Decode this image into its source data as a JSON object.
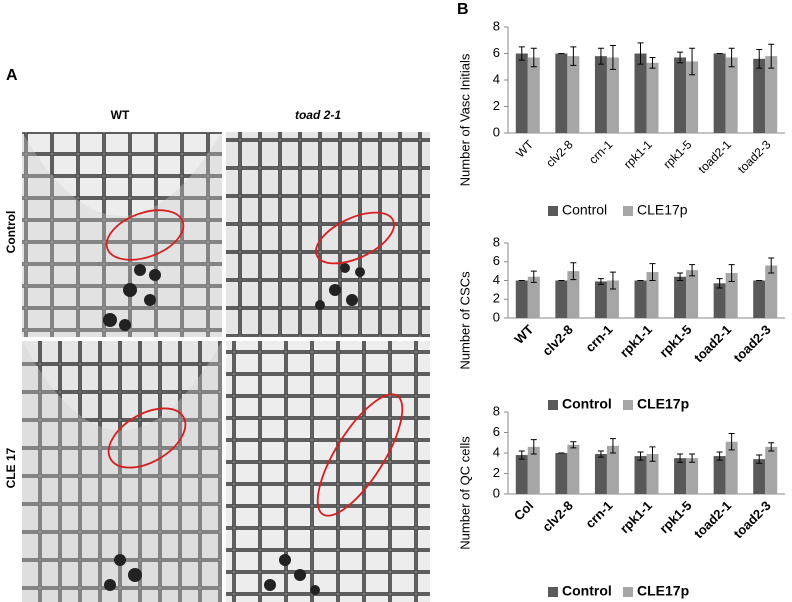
{
  "panel_a": {
    "label": "A",
    "columns": [
      "WT",
      "toad 2-1"
    ],
    "rows": [
      "Control",
      "CLE 17"
    ]
  },
  "panel_b": {
    "label": "B"
  },
  "chart_data": [
    {
      "type": "bar",
      "ylabel": "Number of Vasc Initials",
      "categories": [
        "WT",
        "clv2-8",
        "crn-1",
        "rpk1-1",
        "rpk1-5",
        "toad2-1",
        "toad2-3"
      ],
      "series": [
        {
          "name": "Control",
          "color": "#595959",
          "values": [
            6.0,
            6.0,
            5.8,
            6.0,
            5.7,
            6.0,
            5.6
          ],
          "errors": [
            0.5,
            0,
            0.6,
            0.8,
            0.4,
            0,
            0.7
          ]
        },
        {
          "name": "CLE17p",
          "color": "#a6a6a6",
          "values": [
            5.7,
            5.8,
            5.7,
            5.3,
            5.4,
            5.7,
            5.8
          ],
          "errors": [
            0.7,
            0.7,
            0.9,
            0.4,
            1.0,
            0.7,
            0.9
          ]
        }
      ],
      "ylim": [
        0,
        8
      ],
      "yticks": [
        0,
        2,
        4,
        6,
        8
      ],
      "grid": false,
      "bold_labels": false
    },
    {
      "type": "bar",
      "ylabel": "Number of CSCs",
      "categories": [
        "WT",
        "clv2-8",
        "crn-1",
        "rpk1-1",
        "rpk1-5",
        "toad2-1",
        "toad2-3"
      ],
      "series": [
        {
          "name": "Control",
          "color": "#595959",
          "values": [
            4.0,
            4.0,
            3.9,
            4.0,
            4.4,
            3.7,
            4.0
          ],
          "errors": [
            0,
            0,
            0.3,
            0,
            0.4,
            0.5,
            0
          ]
        },
        {
          "name": "CLE17p",
          "color": "#a6a6a6",
          "values": [
            4.4,
            5.0,
            4.0,
            4.9,
            5.1,
            4.8,
            5.6
          ],
          "errors": [
            0.6,
            0.9,
            0.9,
            0.9,
            0.6,
            0.9,
            0.8
          ]
        }
      ],
      "ylim": [
        0,
        8
      ],
      "yticks": [
        0,
        2,
        4,
        6,
        8
      ],
      "grid": false,
      "bold_labels": true
    },
    {
      "type": "bar",
      "ylabel": "Number of QC cells",
      "categories": [
        "Col",
        "clv2-8",
        "crn-1",
        "rpk1-1",
        "rpk1-5",
        "toad2-1",
        "toad2-3"
      ],
      "series": [
        {
          "name": "Control",
          "color": "#595959",
          "values": [
            3.8,
            4.0,
            3.9,
            3.7,
            3.5,
            3.7,
            3.4
          ],
          "errors": [
            0.4,
            0,
            0.3,
            0.4,
            0.4,
            0.4,
            0.4
          ]
        },
        {
          "name": "CLE17p",
          "color": "#a6a6a6",
          "values": [
            4.6,
            4.8,
            4.7,
            3.9,
            3.5,
            5.1,
            4.6
          ],
          "errors": [
            0.7,
            0.3,
            0.7,
            0.7,
            0.4,
            0.8,
            0.4
          ]
        }
      ],
      "ylim": [
        0,
        8
      ],
      "yticks": [
        0,
        2,
        4,
        6,
        8
      ],
      "grid": false,
      "bold_labels": true
    }
  ]
}
